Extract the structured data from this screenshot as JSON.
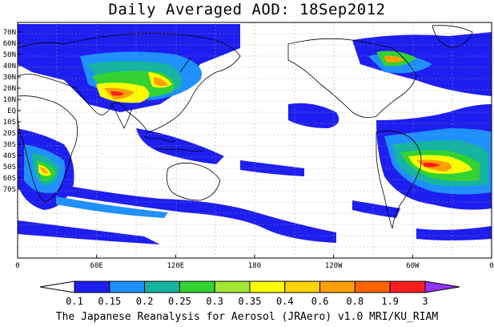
{
  "title": "Daily Averaged AOD: 18Sep2012",
  "credit": "The Japanese Reanalysis for Aerosol (JRAero) v1.0 MRI/KU_RIAM",
  "map": {
    "lat_labels": [
      "70N",
      "60N",
      "50N",
      "40N",
      "30N",
      "20N",
      "10N",
      "EQ",
      "10S",
      "20S",
      "30S",
      "40S",
      "50S",
      "60S",
      "70S"
    ],
    "lon_labels": [
      "0",
      "60E",
      "120E",
      "180",
      "120W",
      "60W",
      "0"
    ]
  },
  "legend": {
    "labels": [
      "0.1",
      "0.15",
      "0.2",
      "0.25",
      "0.3",
      "0.35",
      "0.4",
      "0.6",
      "0.8",
      "1.9",
      "3"
    ],
    "colors": [
      "#ffffff",
      "#1e1ef0",
      "#1e90ff",
      "#14b4a0",
      "#32d232",
      "#a0e632",
      "#ffff00",
      "#ffd200",
      "#ffa000",
      "#ff6400",
      "#ff1e1e",
      "#9632ff"
    ]
  }
}
